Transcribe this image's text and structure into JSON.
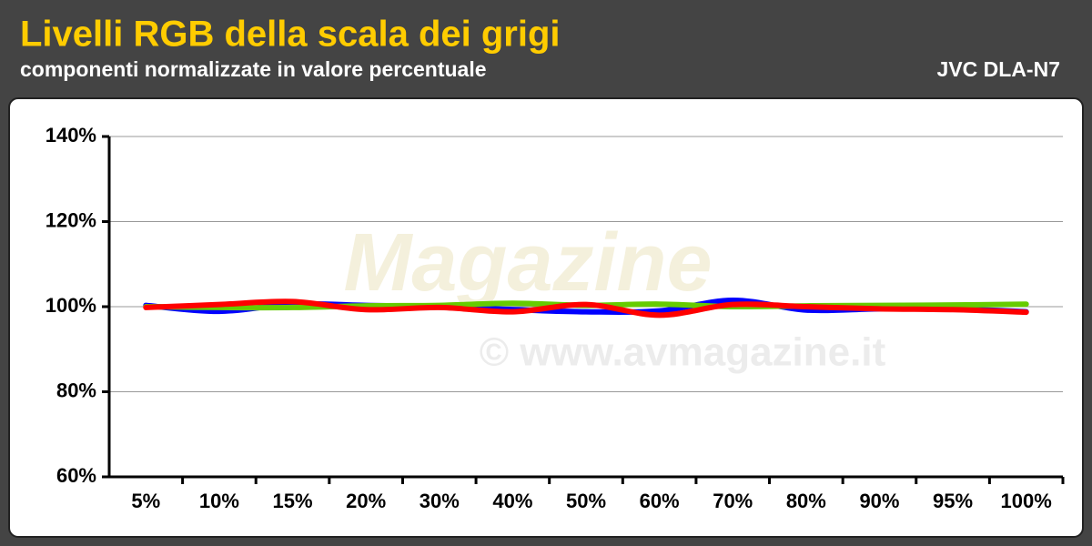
{
  "chart_data": {
    "type": "line",
    "title": "Livelli RGB della scala dei grigi",
    "subtitle": "componenti normalizzate in valore percentuale",
    "device": "JVC DLA-N7",
    "watermark": {
      "brand": "Magazine",
      "url": "© www.avmagazine.it"
    },
    "categories": [
      "5%",
      "10%",
      "15%",
      "20%",
      "30%",
      "40%",
      "50%",
      "60%",
      "70%",
      "80%",
      "90%",
      "95%",
      "100%"
    ],
    "series": [
      {
        "color": "#0000ff",
        "values": [
          100.3,
          98.9,
          100.6,
          100.3,
          100.0,
          99.3,
          98.8,
          99.0,
          101.5,
          99.2,
          99.5,
          99.5,
          98.8
        ]
      },
      {
        "color": "#66cc00",
        "values": [
          100.0,
          99.8,
          99.8,
          100.2,
          100.3,
          100.8,
          100.3,
          100.6,
          100.0,
          100.2,
          100.3,
          100.4,
          100.6
        ]
      },
      {
        "color": "#ff0000",
        "values": [
          99.8,
          100.5,
          101.2,
          99.3,
          99.8,
          98.8,
          100.5,
          98.0,
          100.5,
          100.0,
          99.5,
          99.3,
          98.7
        ]
      }
    ],
    "ylim": [
      60,
      140
    ],
    "yticks": [
      {
        "value": 60,
        "label": "60%"
      },
      {
        "value": 80,
        "label": "80%"
      },
      {
        "value": 100,
        "label": "100%"
      },
      {
        "value": 120,
        "label": "120%"
      },
      {
        "value": 140,
        "label": "140%"
      }
    ],
    "grid": true
  }
}
